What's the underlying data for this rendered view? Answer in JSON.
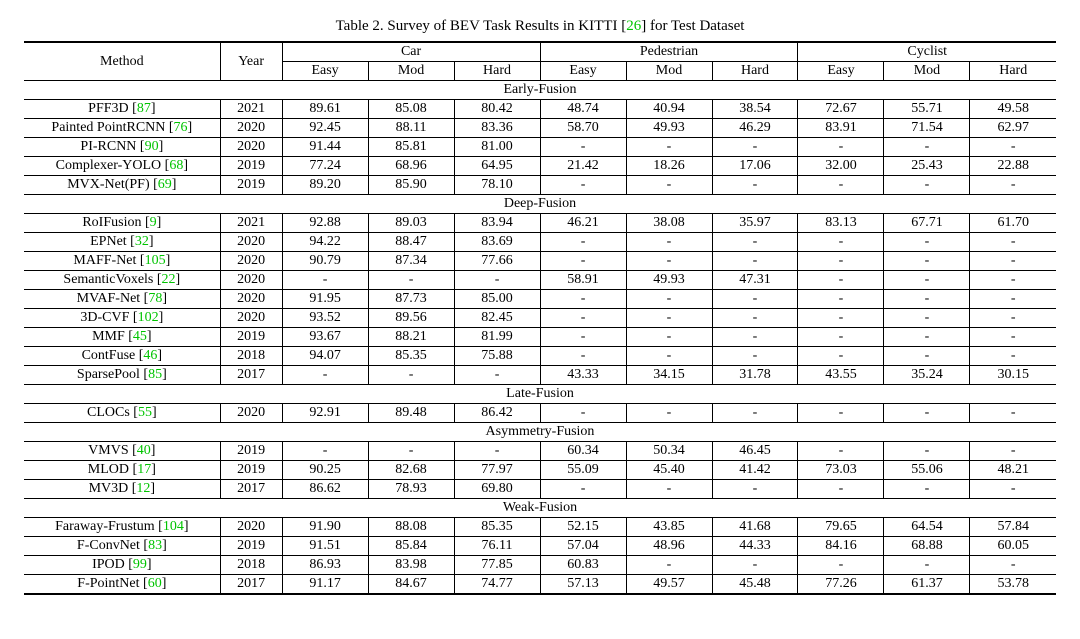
{
  "caption_prefix": "Table 2. Survey of BEV Task Results in KITTI [",
  "caption_cite": "26",
  "caption_suffix": "] for Test Dataset",
  "cite_color": "#00c400",
  "headers": {
    "method": "Method",
    "year": "Year",
    "groups": [
      "Car",
      "Pedestrian",
      "Cyclist"
    ],
    "sub": [
      "Easy",
      "Mod",
      "Hard"
    ]
  },
  "sections": [
    {
      "title": "Early-Fusion",
      "rows": [
        {
          "name": "PFF3D",
          "cite": "87",
          "year": "2021",
          "vals": [
            "89.61",
            "85.08",
            "80.42",
            "48.74",
            "40.94",
            "38.54",
            "72.67",
            "55.71",
            "49.58"
          ]
        },
        {
          "name": "Painted PointRCNN",
          "cite": "76",
          "year": "2020",
          "vals": [
            "92.45",
            "88.11",
            "83.36",
            "58.70",
            "49.93",
            "46.29",
            "83.91",
            "71.54",
            "62.97"
          ]
        },
        {
          "name": "PI-RCNN",
          "cite": "90",
          "year": "2020",
          "vals": [
            "91.44",
            "85.81",
            "81.00",
            "-",
            "-",
            "-",
            "-",
            "-",
            "-"
          ]
        },
        {
          "name": "Complexer-YOLO",
          "cite": "68",
          "year": "2019",
          "vals": [
            "77.24",
            "68.96",
            "64.95",
            "21.42",
            "18.26",
            "17.06",
            "32.00",
            "25.43",
            "22.88"
          ]
        },
        {
          "name": "MVX-Net(PF)",
          "cite": "69",
          "year": "2019",
          "vals": [
            "89.20",
            "85.90",
            "78.10",
            "-",
            "-",
            "-",
            "-",
            "-",
            "-"
          ]
        }
      ]
    },
    {
      "title": "Deep-Fusion",
      "rows": [
        {
          "name": "RoIFusion",
          "cite": "9",
          "year": "2021",
          "vals": [
            "92.88",
            "89.03",
            "83.94",
            "46.21",
            "38.08",
            "35.97",
            "83.13",
            "67.71",
            "61.70"
          ]
        },
        {
          "name": "EPNet",
          "cite": "32",
          "year": "2020",
          "vals": [
            "94.22",
            "88.47",
            "83.69",
            "-",
            "-",
            "-",
            "-",
            "-",
            "-"
          ]
        },
        {
          "name": "MAFF-Net",
          "cite": "105",
          "year": "2020",
          "vals": [
            "90.79",
            "87.34",
            "77.66",
            "-",
            "-",
            "-",
            "-",
            "-",
            "-"
          ]
        },
        {
          "name": "SemanticVoxels",
          "cite": "22",
          "year": "2020",
          "vals": [
            "-",
            "-",
            "-",
            "58.91",
            "49.93",
            "47.31",
            "-",
            "-",
            "-"
          ]
        },
        {
          "name": "MVAF-Net",
          "cite": "78",
          "year": "2020",
          "vals": [
            "91.95",
            "87.73",
            "85.00",
            "-",
            "-",
            "-",
            "-",
            "-",
            "-"
          ]
        },
        {
          "name": "3D-CVF",
          "cite": "102",
          "year": "2020",
          "vals": [
            "93.52",
            "89.56",
            "82.45",
            "-",
            "-",
            "-",
            "-",
            "-",
            "-"
          ]
        },
        {
          "name": "MMF",
          "cite": "45",
          "year": "2019",
          "vals": [
            "93.67",
            "88.21",
            "81.99",
            "-",
            "-",
            "-",
            "-",
            "-",
            "-"
          ]
        },
        {
          "name": "ContFuse",
          "cite": "46",
          "year": "2018",
          "vals": [
            "94.07",
            "85.35",
            "75.88",
            "-",
            "-",
            "-",
            "-",
            "-",
            "-"
          ]
        },
        {
          "name": "SparsePool",
          "cite": "85",
          "year": "2017",
          "vals": [
            "-",
            "-",
            "-",
            "43.33",
            "34.15",
            "31.78",
            "43.55",
            "35.24",
            "30.15"
          ]
        }
      ]
    },
    {
      "title": "Late-Fusion",
      "rows": [
        {
          "name": "CLOCs",
          "cite": "55",
          "year": "2020",
          "vals": [
            "92.91",
            "89.48",
            "86.42",
            "-",
            "-",
            "-",
            "-",
            "-",
            "-"
          ]
        }
      ]
    },
    {
      "title": "Asymmetry-Fusion",
      "rows": [
        {
          "name": "VMVS",
          "cite": "40",
          "year": "2019",
          "vals": [
            "-",
            "-",
            "-",
            "60.34",
            "50.34",
            "46.45",
            "-",
            "-",
            "-"
          ]
        },
        {
          "name": "MLOD",
          "cite": "17",
          "year": "2019",
          "vals": [
            "90.25",
            "82.68",
            "77.97",
            "55.09",
            "45.40",
            "41.42",
            "73.03",
            "55.06",
            "48.21"
          ]
        },
        {
          "name": "MV3D",
          "cite": "12",
          "year": "2017",
          "vals": [
            "86.62",
            "78.93",
            "69.80",
            "-",
            "-",
            "-",
            "-",
            "-",
            "-"
          ]
        }
      ]
    },
    {
      "title": "Weak-Fusion",
      "rows": [
        {
          "name": "Faraway-Frustum",
          "cite": "104",
          "year": "2020",
          "vals": [
            "91.90",
            "88.08",
            "85.35",
            "52.15",
            "43.85",
            "41.68",
            "79.65",
            "64.54",
            "57.84"
          ]
        },
        {
          "name": "F-ConvNet",
          "cite": "83",
          "year": "2019",
          "vals": [
            "91.51",
            "85.84",
            "76.11",
            "57.04",
            "48.96",
            "44.33",
            "84.16",
            "68.88",
            "60.05"
          ]
        },
        {
          "name": "IPOD",
          "cite": "99",
          "year": "2018",
          "vals": [
            "86.93",
            "83.98",
            "77.85",
            "60.83",
            "-",
            "-",
            "-",
            "-",
            "-"
          ]
        },
        {
          "name": "F-PointNet",
          "cite": "60",
          "year": "2017",
          "vals": [
            "91.17",
            "84.67",
            "74.77",
            "57.13",
            "49.57",
            "45.48",
            "77.26",
            "61.37",
            "53.78"
          ]
        }
      ]
    }
  ]
}
